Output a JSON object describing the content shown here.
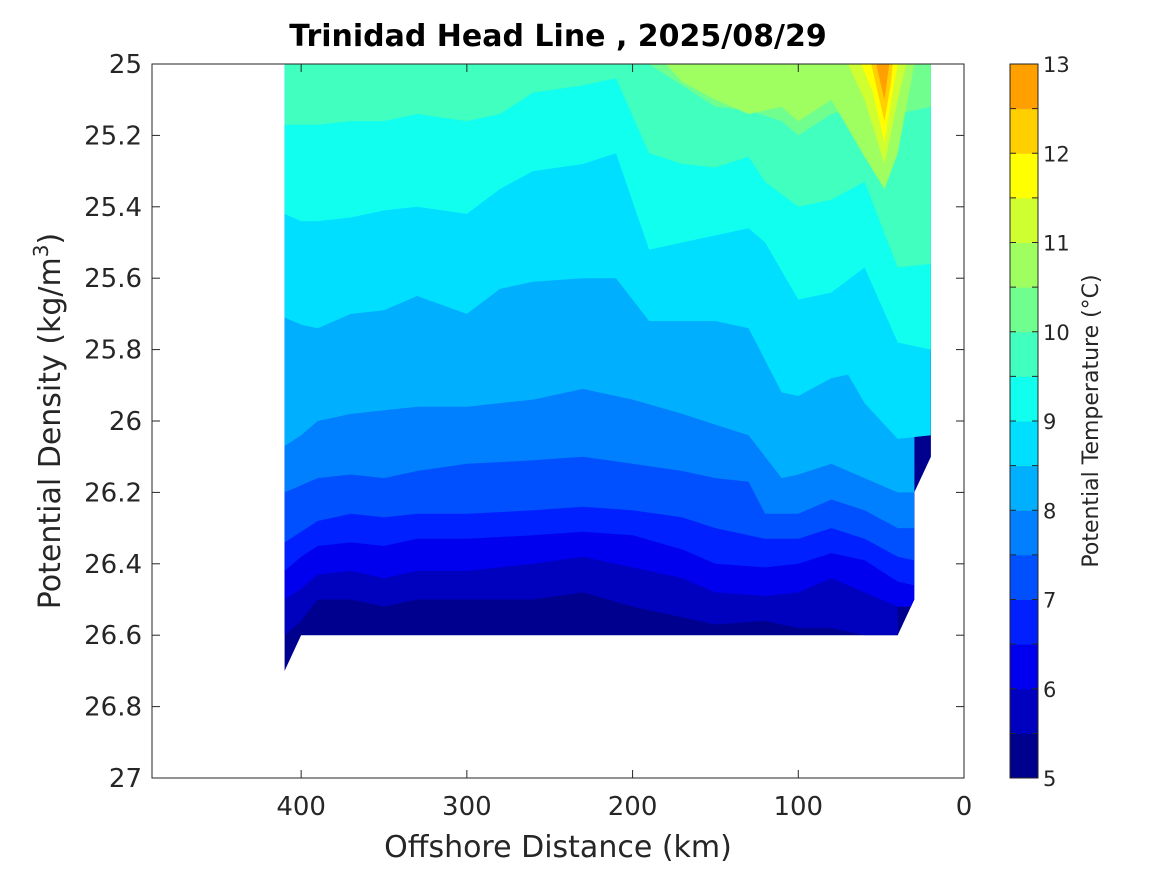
{
  "chart_data": {
    "type": "contour",
    "title": "Trinidad Head Line , 2025/08/29",
    "xlabel": "Offshore Distance (km)",
    "ylabel_main": "Potential Density (kg/m",
    "ylabel_sup": "3",
    "ylabel_tail": ")",
    "xlim": [
      490,
      0
    ],
    "ylim": [
      25,
      27
    ],
    "x_reversed": true,
    "y_reversed": true,
    "xticks": [
      400,
      300,
      200,
      100,
      0
    ],
    "yticks": [
      25,
      25.2,
      25.4,
      25.6,
      25.8,
      26,
      26.2,
      26.4,
      26.6,
      26.8,
      27
    ],
    "colorbar": {
      "label": "Potential Temperature (°C)",
      "range": [
        5,
        13
      ],
      "step": 0.5,
      "tick_values": [
        5,
        6,
        7,
        8,
        9,
        10,
        11,
        12,
        13
      ],
      "colors": [
        "#00008f",
        "#0000bf",
        "#0000ef",
        "#0020ff",
        "#0050ff",
        "#0080ff",
        "#00b0ff",
        "#00dfff",
        "#10ffef",
        "#40ffbf",
        "#70ff8f",
        "#9fff60",
        "#cfff30",
        "#ffff00",
        "#ffcf00",
        "#ff9f00",
        "#ff7000",
        "#ff4000",
        "#ff1000",
        "#df0000",
        "#af0000"
      ]
    },
    "grid": false,
    "data_x_range": [
      410,
      20
    ],
    "data_y_range": [
      25,
      26.6
    ],
    "contour_levels": [
      {
        "temp_from": 5.5,
        "temp_to": 6,
        "min_density": 26.6,
        "boundary": [
          [
            410,
            26.6
          ],
          [
            400,
            26.56
          ],
          [
            390,
            26.5
          ],
          [
            370,
            26.5
          ],
          [
            350,
            26.52
          ],
          [
            330,
            26.5
          ],
          [
            300,
            26.5
          ],
          [
            260,
            26.5
          ],
          [
            230,
            26.48
          ],
          [
            200,
            26.52
          ],
          [
            170,
            26.55
          ],
          [
            150,
            26.57
          ],
          [
            120,
            26.56
          ],
          [
            100,
            26.58
          ],
          [
            80,
            26.58
          ],
          [
            60,
            26.6
          ],
          [
            40,
            26.6
          ]
        ]
      },
      {
        "temp_from": 6,
        "temp_to": 6.5,
        "boundary": [
          [
            410,
            26.5
          ],
          [
            400,
            26.47
          ],
          [
            390,
            26.43
          ],
          [
            370,
            26.42
          ],
          [
            350,
            26.44
          ],
          [
            330,
            26.42
          ],
          [
            300,
            26.42
          ],
          [
            260,
            26.4
          ],
          [
            230,
            26.38
          ],
          [
            200,
            26.41
          ],
          [
            170,
            26.44
          ],
          [
            150,
            26.48
          ],
          [
            120,
            26.49
          ],
          [
            100,
            26.48
          ],
          [
            80,
            26.44
          ],
          [
            60,
            26.48
          ],
          [
            40,
            26.52
          ],
          [
            30,
            26.52
          ]
        ]
      },
      {
        "temp_from": 6.5,
        "temp_to": 7,
        "boundary": [
          [
            410,
            26.42
          ],
          [
            400,
            26.38
          ],
          [
            390,
            26.35
          ],
          [
            370,
            26.34
          ],
          [
            350,
            26.35
          ],
          [
            330,
            26.33
          ],
          [
            300,
            26.33
          ],
          [
            260,
            26.32
          ],
          [
            230,
            26.31
          ],
          [
            200,
            26.32
          ],
          [
            170,
            26.36
          ],
          [
            150,
            26.4
          ],
          [
            120,
            26.41
          ],
          [
            100,
            26.4
          ],
          [
            80,
            26.37
          ],
          [
            60,
            26.39
          ],
          [
            40,
            26.45
          ],
          [
            30,
            26.46
          ]
        ]
      },
      {
        "temp_from": 7,
        "temp_to": 7.5,
        "boundary": [
          [
            410,
            26.34
          ],
          [
            400,
            26.31
          ],
          [
            390,
            26.28
          ],
          [
            370,
            26.26
          ],
          [
            350,
            26.27
          ],
          [
            330,
            26.26
          ],
          [
            300,
            26.26
          ],
          [
            260,
            26.25
          ],
          [
            230,
            26.24
          ],
          [
            200,
            26.25
          ],
          [
            170,
            26.27
          ],
          [
            150,
            26.3
          ],
          [
            120,
            26.33
          ],
          [
            100,
            26.33
          ],
          [
            80,
            26.3
          ],
          [
            60,
            26.33
          ],
          [
            40,
            26.38
          ],
          [
            30,
            26.39
          ]
        ]
      },
      {
        "temp_from": 7.5,
        "temp_to": 8,
        "boundary": [
          [
            410,
            26.2
          ],
          [
            400,
            26.18
          ],
          [
            390,
            26.16
          ],
          [
            370,
            26.15
          ],
          [
            350,
            26.16
          ],
          [
            330,
            26.14
          ],
          [
            300,
            26.12
          ],
          [
            260,
            26.11
          ],
          [
            230,
            26.1
          ],
          [
            200,
            26.12
          ],
          [
            170,
            26.14
          ],
          [
            150,
            26.16
          ],
          [
            130,
            26.17
          ],
          [
            120,
            26.26
          ],
          [
            100,
            26.26
          ],
          [
            80,
            26.22
          ],
          [
            60,
            26.25
          ],
          [
            40,
            26.3
          ],
          [
            30,
            26.3
          ]
        ]
      },
      {
        "temp_from": 8,
        "temp_to": 8.5,
        "boundary": [
          [
            410,
            26.07
          ],
          [
            400,
            26.04
          ],
          [
            390,
            26.0
          ],
          [
            370,
            25.98
          ],
          [
            350,
            25.97
          ],
          [
            330,
            25.96
          ],
          [
            300,
            25.96
          ],
          [
            260,
            25.94
          ],
          [
            230,
            25.91
          ],
          [
            200,
            25.94
          ],
          [
            170,
            25.98
          ],
          [
            150,
            26.01
          ],
          [
            130,
            26.04
          ],
          [
            110,
            26.16
          ],
          [
            100,
            26.15
          ],
          [
            80,
            26.12
          ],
          [
            60,
            26.16
          ],
          [
            40,
            26.2
          ],
          [
            30,
            26.2
          ]
        ]
      },
      {
        "temp_from": 8.5,
        "temp_to": 9,
        "boundary": [
          [
            410,
            25.71
          ],
          [
            400,
            25.73
          ],
          [
            390,
            25.74
          ],
          [
            370,
            25.7
          ],
          [
            350,
            25.69
          ],
          [
            330,
            25.65
          ],
          [
            300,
            25.7
          ],
          [
            280,
            25.63
          ],
          [
            260,
            25.61
          ],
          [
            230,
            25.6
          ],
          [
            210,
            25.6
          ],
          [
            190,
            25.72
          ],
          [
            170,
            25.72
          ],
          [
            150,
            25.72
          ],
          [
            130,
            25.74
          ],
          [
            110,
            25.92
          ],
          [
            100,
            25.93
          ],
          [
            80,
            25.88
          ],
          [
            70,
            25.87
          ],
          [
            60,
            25.95
          ],
          [
            40,
            26.05
          ],
          [
            20,
            26.04
          ]
        ]
      },
      {
        "temp_from": 9,
        "temp_to": 9.5,
        "boundary": [
          [
            410,
            25.42
          ],
          [
            400,
            25.44
          ],
          [
            390,
            25.44
          ],
          [
            370,
            25.43
          ],
          [
            350,
            25.41
          ],
          [
            330,
            25.4
          ],
          [
            300,
            25.42
          ],
          [
            280,
            25.35
          ],
          [
            260,
            25.3
          ],
          [
            230,
            25.28
          ],
          [
            210,
            25.25
          ],
          [
            190,
            25.52
          ],
          [
            170,
            25.5
          ],
          [
            150,
            25.48
          ],
          [
            130,
            25.46
          ],
          [
            120,
            25.5
          ],
          [
            100,
            25.66
          ],
          [
            80,
            25.64
          ],
          [
            60,
            25.57
          ],
          [
            40,
            25.78
          ],
          [
            20,
            25.8
          ]
        ]
      },
      {
        "temp_from": 9.5,
        "temp_to": 10,
        "boundary": [
          [
            410,
            25.17
          ],
          [
            400,
            25.17
          ],
          [
            390,
            25.17
          ],
          [
            370,
            25.16
          ],
          [
            350,
            25.16
          ],
          [
            330,
            25.14
          ],
          [
            300,
            25.16
          ],
          [
            280,
            25.14
          ],
          [
            260,
            25.08
          ],
          [
            230,
            25.06
          ],
          [
            210,
            25.04
          ],
          [
            190,
            25.25
          ],
          [
            170,
            25.28
          ],
          [
            150,
            25.29
          ],
          [
            130,
            25.26
          ],
          [
            120,
            25.33
          ],
          [
            100,
            25.4
          ],
          [
            80,
            25.38
          ],
          [
            60,
            25.33
          ],
          [
            40,
            25.57
          ],
          [
            20,
            25.56
          ]
        ]
      },
      {
        "temp_from": 10,
        "temp_to": 10.5,
        "boundary": [
          [
            410,
            25.0
          ],
          [
            300,
            25.0
          ],
          [
            200,
            25.0
          ],
          [
            190,
            25.0
          ],
          [
            170,
            25.06
          ],
          [
            150,
            25.12
          ],
          [
            130,
            25.13
          ],
          [
            110,
            25.16
          ],
          [
            100,
            25.2
          ],
          [
            80,
            25.14
          ],
          [
            60,
            25.12
          ],
          [
            40,
            25.14
          ],
          [
            20,
            25.12
          ]
        ]
      },
      {
        "temp_from": 10.5,
        "temp_to": 11,
        "boundary": [
          [
            180,
            25.0
          ],
          [
            170,
            25.05
          ],
          [
            150,
            25.1
          ],
          [
            130,
            25.14
          ],
          [
            110,
            25.12
          ],
          [
            100,
            25.16
          ],
          [
            80,
            25.1
          ],
          [
            60,
            25.26
          ],
          [
            48,
            25.35
          ],
          [
            40,
            25.25
          ],
          [
            30,
            25.0
          ]
        ]
      }
    ]
  }
}
